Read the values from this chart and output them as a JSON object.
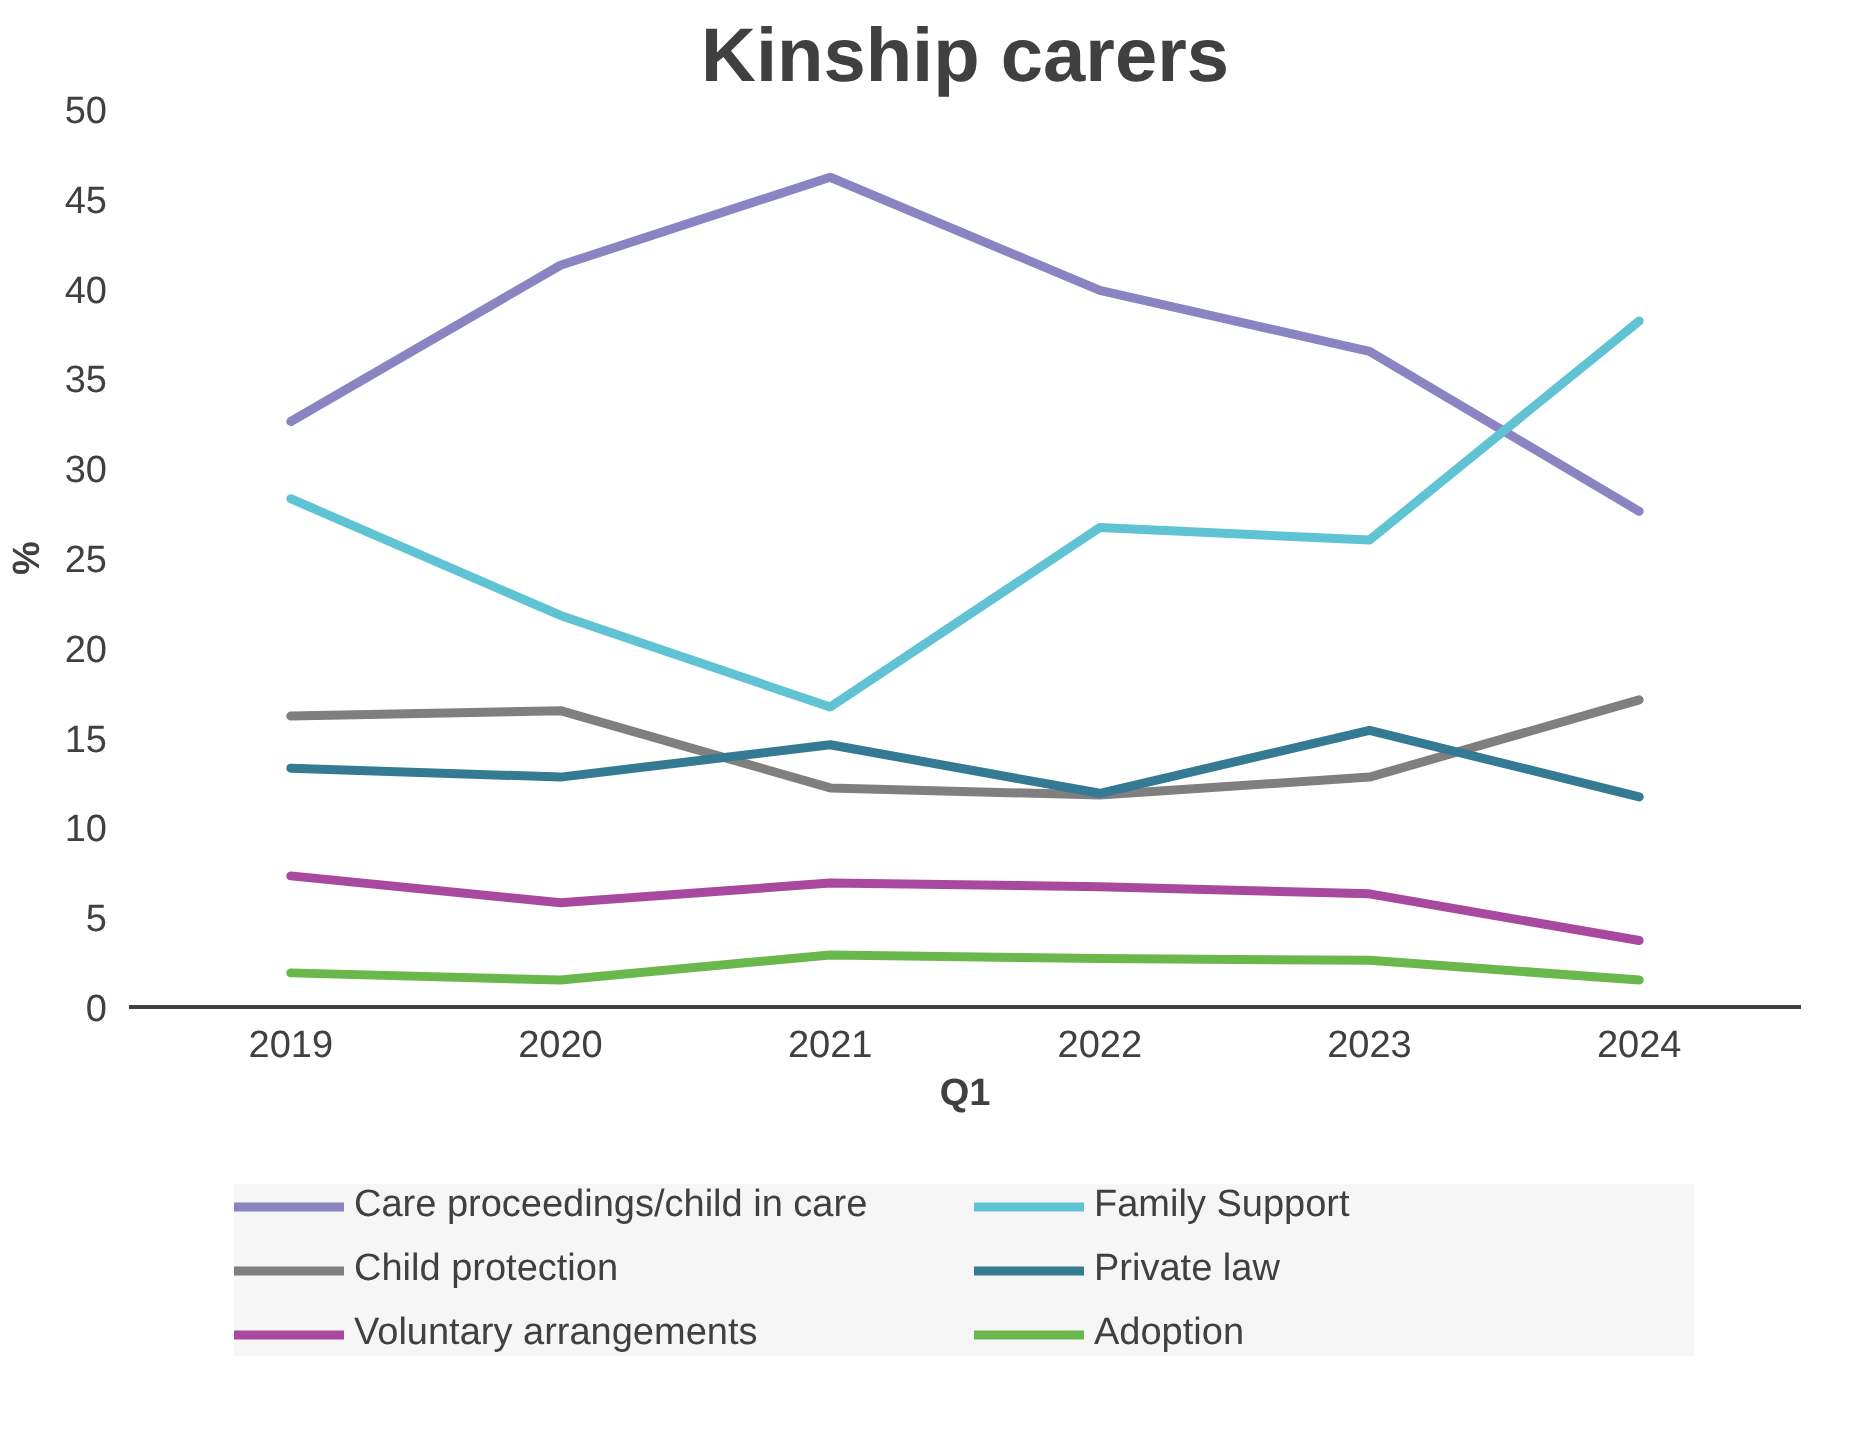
{
  "chart_data": {
    "type": "line",
    "title": "Kinship carers",
    "xlabel": "Q1",
    "ylabel": "%",
    "categories": [
      "2019",
      "2020",
      "2021",
      "2022",
      "2023",
      "2024"
    ],
    "ylim": [
      0,
      50
    ],
    "yticks": [
      0,
      5,
      10,
      15,
      20,
      25,
      30,
      35,
      40,
      45,
      50
    ],
    "legend": "bottom",
    "series": [
      {
        "name": "Care proceedings/child in care",
        "color": "#8a84c2",
        "values": [
          32.6,
          41.3,
          46.2,
          39.9,
          36.5,
          27.6
        ]
      },
      {
        "name": "Family Support",
        "color": "#5fc3d4",
        "values": [
          28.3,
          21.8,
          16.7,
          26.7,
          26.0,
          38.2
        ]
      },
      {
        "name": "Child protection",
        "color": "#7f7f7f",
        "values": [
          16.2,
          16.5,
          12.2,
          11.8,
          12.8,
          17.1
        ]
      },
      {
        "name": "Private law",
        "color": "#337a92",
        "values": [
          13.3,
          12.8,
          14.6,
          11.9,
          15.4,
          11.7
        ]
      },
      {
        "name": "Voluntary arrangements",
        "color": "#a8489e",
        "values": [
          7.3,
          5.8,
          6.9,
          6.7,
          6.3,
          3.7
        ]
      },
      {
        "name": "Adoption",
        "color": "#6ab84c",
        "values": [
          1.9,
          1.5,
          2.9,
          2.7,
          2.6,
          1.5
        ]
      }
    ]
  }
}
